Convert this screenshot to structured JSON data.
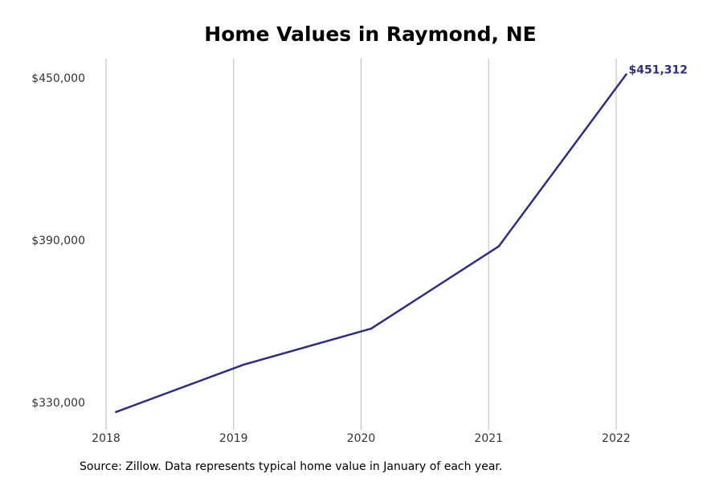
{
  "chart_data": {
    "type": "line",
    "title": "Home Values in Raymond, NE",
    "xlabel": "",
    "ylabel": "",
    "x": [
      2018,
      2019,
      2020,
      2021,
      2022
    ],
    "x_tick_labels": [
      "2018",
      "2019",
      "2020",
      "2021",
      "2022"
    ],
    "series": [
      {
        "values": [
          326500,
          344000,
          357300,
          387700,
          451312
        ],
        "color": "#2e2e7f"
      }
    ],
    "y_ticks": [
      330000,
      390000,
      450000
    ],
    "y_tick_labels": [
      "$330,000",
      "$390,000",
      "$450,000"
    ],
    "end_label": "$451,312",
    "grid": "vertical",
    "legend": "none",
    "colors": {
      "line": "#2e2e7f",
      "grid": "#bbbbbb",
      "title": "#000000"
    }
  },
  "source_note": "Source: Zillow. Data represents typical home value in January of each year."
}
